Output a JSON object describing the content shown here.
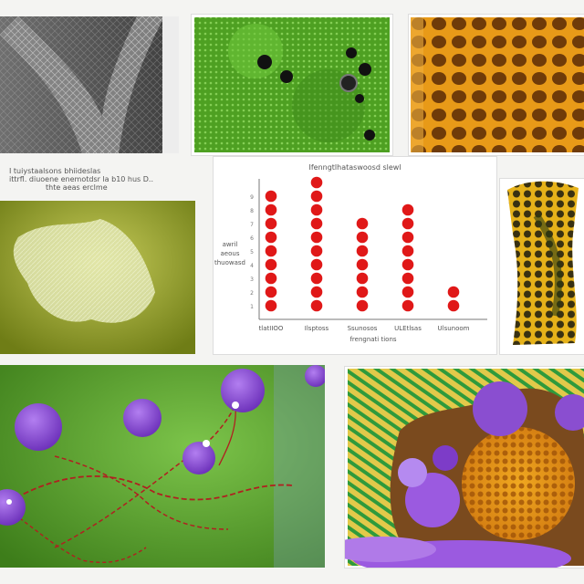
{
  "caption_left": {
    "line1": "I tuiystaalsons bhiideslas",
    "line2": "ittrfl. diuoene enemotdsr la b10 hus D..",
    "line3": "thte aeas erclme"
  },
  "chart_data": {
    "type": "scatter",
    "title": "Ifenngtlhataswoosd slewl",
    "xlabel": "frengnati tions",
    "ylabel_lines": [
      "awril",
      "aeous",
      "thuowasd"
    ],
    "categories": [
      "tlatIIOO",
      "Ilsptoss",
      "Ssunosos",
      "ULEtlsas",
      "Ulsunoom"
    ],
    "values": [
      9,
      10,
      7,
      8,
      2
    ],
    "ylim": [
      0,
      10
    ],
    "yticks": [
      "9",
      "8",
      "7",
      "6",
      "5",
      "4",
      "3",
      "2",
      "1"
    ],
    "grid": false,
    "colors": {
      "marker": "#e01818",
      "axis": "#777777"
    }
  },
  "colors": {
    "green": "#58a82c",
    "orange": "#d4820c",
    "purple": "#8a4ed0",
    "olive": "#8c9a28"
  }
}
